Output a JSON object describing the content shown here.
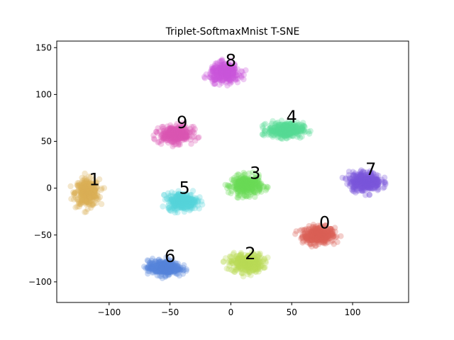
{
  "chart_data": {
    "type": "scatter",
    "title": "Triplet-SoftmaxMnist T-SNE",
    "xlabel": "",
    "ylabel": "",
    "xlim": [
      -143,
      146
    ],
    "ylim": [
      -122,
      157
    ],
    "xticks": [
      -100,
      -50,
      0,
      50,
      100
    ],
    "yticks": [
      -100,
      -50,
      0,
      50,
      100,
      150
    ],
    "grid": false,
    "legend": "none",
    "point_alpha": 0.3,
    "clusters": [
      {
        "label": "0",
        "color": "#db5f57",
        "center": [
          72,
          -50
        ],
        "spread": [
          12,
          8
        ],
        "label_pos": [
          77,
          -43
        ]
      },
      {
        "label": "1",
        "color": "#dbae57",
        "center": [
          -118,
          -5
        ],
        "spread": [
          9,
          13
        ],
        "label_pos": [
          -112,
          3
        ]
      },
      {
        "label": "2",
        "color": "#b9db57",
        "center": [
          13,
          -80
        ],
        "spread": [
          12,
          9
        ],
        "label_pos": [
          16,
          -76
        ]
      },
      {
        "label": "3",
        "color": "#69db57",
        "center": [
          13,
          3
        ],
        "spread": [
          11,
          9
        ],
        "label_pos": [
          20,
          10
        ]
      },
      {
        "label": "4",
        "color": "#57db94",
        "center": [
          45,
          62
        ],
        "spread": [
          13,
          7
        ],
        "label_pos": [
          50,
          70
        ]
      },
      {
        "label": "5",
        "color": "#57d3db",
        "center": [
          -40,
          -14
        ],
        "spread": [
          11,
          8
        ],
        "label_pos": [
          -38,
          -6
        ]
      },
      {
        "label": "6",
        "color": "#5784db",
        "center": [
          -55,
          -85
        ],
        "spread": [
          12,
          7
        ],
        "label_pos": [
          -50,
          -79
        ]
      },
      {
        "label": "7",
        "color": "#7957db",
        "center": [
          110,
          7
        ],
        "spread": [
          12,
          9
        ],
        "label_pos": [
          115,
          14
        ]
      },
      {
        "label": "8",
        "color": "#c957db",
        "center": [
          -5,
          123
        ],
        "spread": [
          11,
          9
        ],
        "label_pos": [
          0,
          130
        ]
      },
      {
        "label": "9",
        "color": "#db57b2",
        "center": [
          -45,
          57
        ],
        "spread": [
          12,
          8
        ],
        "label_pos": [
          -40,
          64
        ]
      }
    ]
  }
}
